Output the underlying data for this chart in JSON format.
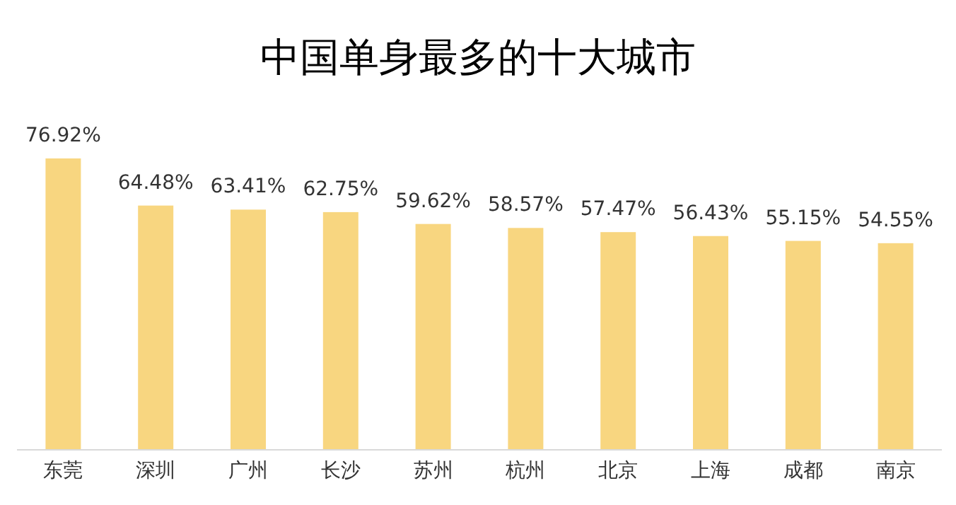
{
  "chart_data": {
    "type": "bar",
    "title": "中国单身最多的十大城市",
    "categories": [
      "东莞",
      "深圳",
      "广州",
      "长沙",
      "苏州",
      "杭州",
      "北京",
      "上海",
      "成都",
      "南京"
    ],
    "values": [
      76.92,
      64.48,
      63.41,
      62.75,
      59.62,
      58.57,
      57.47,
      56.43,
      55.15,
      54.55
    ],
    "value_labels": [
      "76.92%",
      "64.48%",
      "63.41%",
      "62.75%",
      "59.62%",
      "58.57%",
      "57.47%",
      "56.43%",
      "55.15%",
      "54.55%"
    ],
    "color": "#f8d680"
  }
}
